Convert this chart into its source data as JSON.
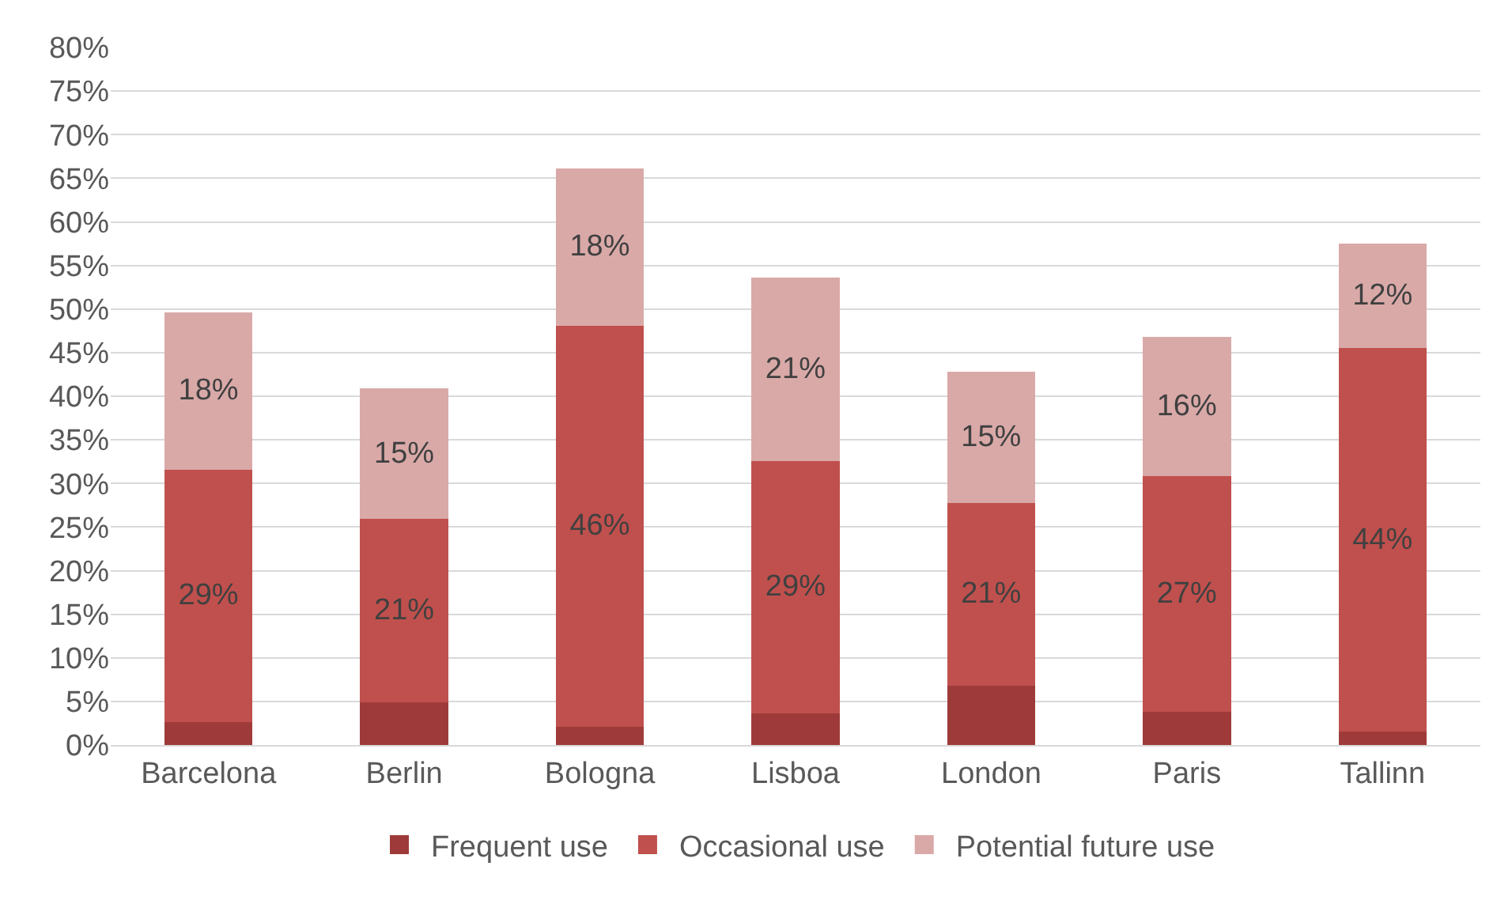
{
  "chart_data": {
    "type": "bar",
    "stacked": true,
    "categories": [
      "Barcelona",
      "Berlin",
      "Bologna",
      "Lisboa",
      "London",
      "Paris",
      "Tallinn"
    ],
    "series": [
      {
        "name": "Frequent use",
        "color": "#9e3b3a",
        "values": [
          2.6,
          4.9,
          2.1,
          3.6,
          6.8,
          3.8,
          1.5
        ],
        "value_labels": [
          null,
          null,
          null,
          null,
          null,
          null,
          null
        ]
      },
      {
        "name": "Occasional use",
        "color": "#c0504d",
        "values": [
          29,
          21,
          46,
          29,
          21,
          27,
          44
        ],
        "value_labels": [
          "29%",
          "21%",
          "46%",
          "29%",
          "21%",
          "27%",
          "44%"
        ]
      },
      {
        "name": "Potential future use",
        "color": "#d9a9a8",
        "values": [
          18,
          15,
          18,
          21,
          15,
          16,
          12
        ],
        "value_labels": [
          "18%",
          "15%",
          "18%",
          "21%",
          "15%",
          "16%",
          "12%"
        ]
      }
    ],
    "ylim": [
      0,
      80
    ],
    "yticks": [
      {
        "value": 0,
        "label": "0%"
      },
      {
        "value": 5,
        "label": "5%"
      },
      {
        "value": 10,
        "label": "10%"
      },
      {
        "value": 15,
        "label": "15%"
      },
      {
        "value": 20,
        "label": "20%"
      },
      {
        "value": 25,
        "label": "25%"
      },
      {
        "value": 30,
        "label": "30%"
      },
      {
        "value": 35,
        "label": "35%"
      },
      {
        "value": 40,
        "label": "40%"
      },
      {
        "value": 45,
        "label": "45%"
      },
      {
        "value": 50,
        "label": "50%"
      },
      {
        "value": 55,
        "label": "55%"
      },
      {
        "value": 60,
        "label": "60%"
      },
      {
        "value": 65,
        "label": "65%"
      },
      {
        "value": 70,
        "label": "70%"
      },
      {
        "value": 75,
        "label": "75%"
      },
      {
        "value": 80,
        "label": "80%"
      }
    ],
    "grid": "y",
    "legend": "bottom"
  }
}
